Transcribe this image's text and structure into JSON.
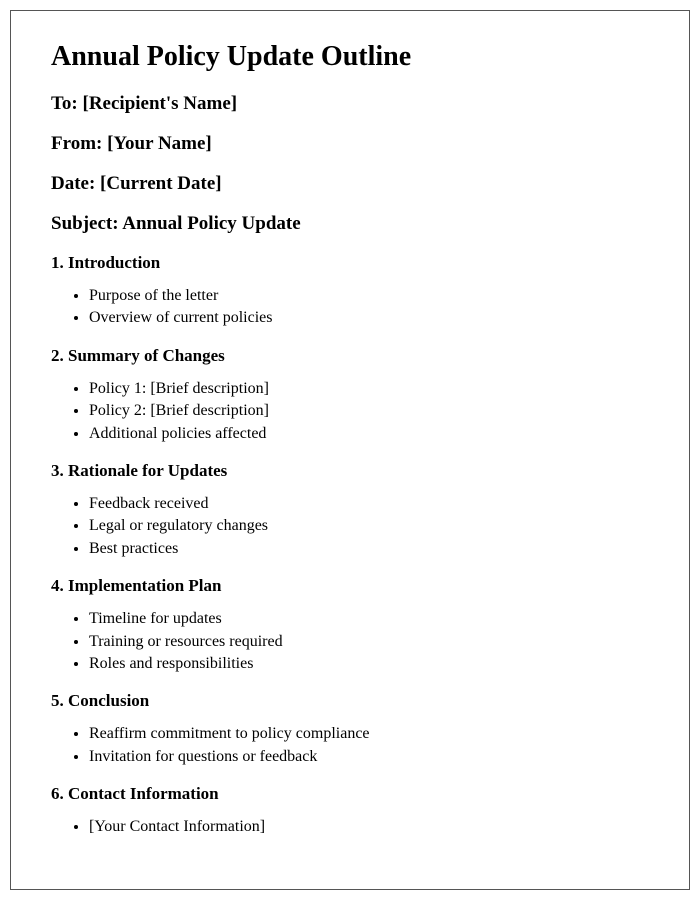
{
  "document": {
    "title": "Annual Policy Update Outline",
    "meta": {
      "to_label": "To: [Recipient's Name]",
      "from_label": "From: [Your Name]",
      "date_label": "Date: [Current Date]",
      "subject_label": "Subject: Annual Policy Update"
    },
    "sections": [
      {
        "heading": "1. Introduction",
        "items": [
          "Purpose of the letter",
          "Overview of current policies"
        ]
      },
      {
        "heading": "2. Summary of Changes",
        "items": [
          "Policy 1: [Brief description]",
          "Policy 2: [Brief description]",
          "Additional policies affected"
        ]
      },
      {
        "heading": "3. Rationale for Updates",
        "items": [
          "Feedback received",
          "Legal or regulatory changes",
          "Best practices"
        ]
      },
      {
        "heading": "4. Implementation Plan",
        "items": [
          "Timeline for updates",
          "Training or resources required",
          "Roles and responsibilities"
        ]
      },
      {
        "heading": "5. Conclusion",
        "items": [
          "Reaffirm commitment to policy compliance",
          "Invitation for questions or feedback"
        ]
      },
      {
        "heading": "6. Contact Information",
        "items": [
          "[Your Contact Information]"
        ]
      }
    ]
  },
  "styling": {
    "page_border_color": "#555555",
    "background_color": "#ffffff",
    "text_color": "#000000",
    "title_fontsize": 28,
    "meta_fontsize": 19,
    "section_heading_fontsize": 17,
    "body_fontsize": 16,
    "font_family": "Times New Roman"
  }
}
